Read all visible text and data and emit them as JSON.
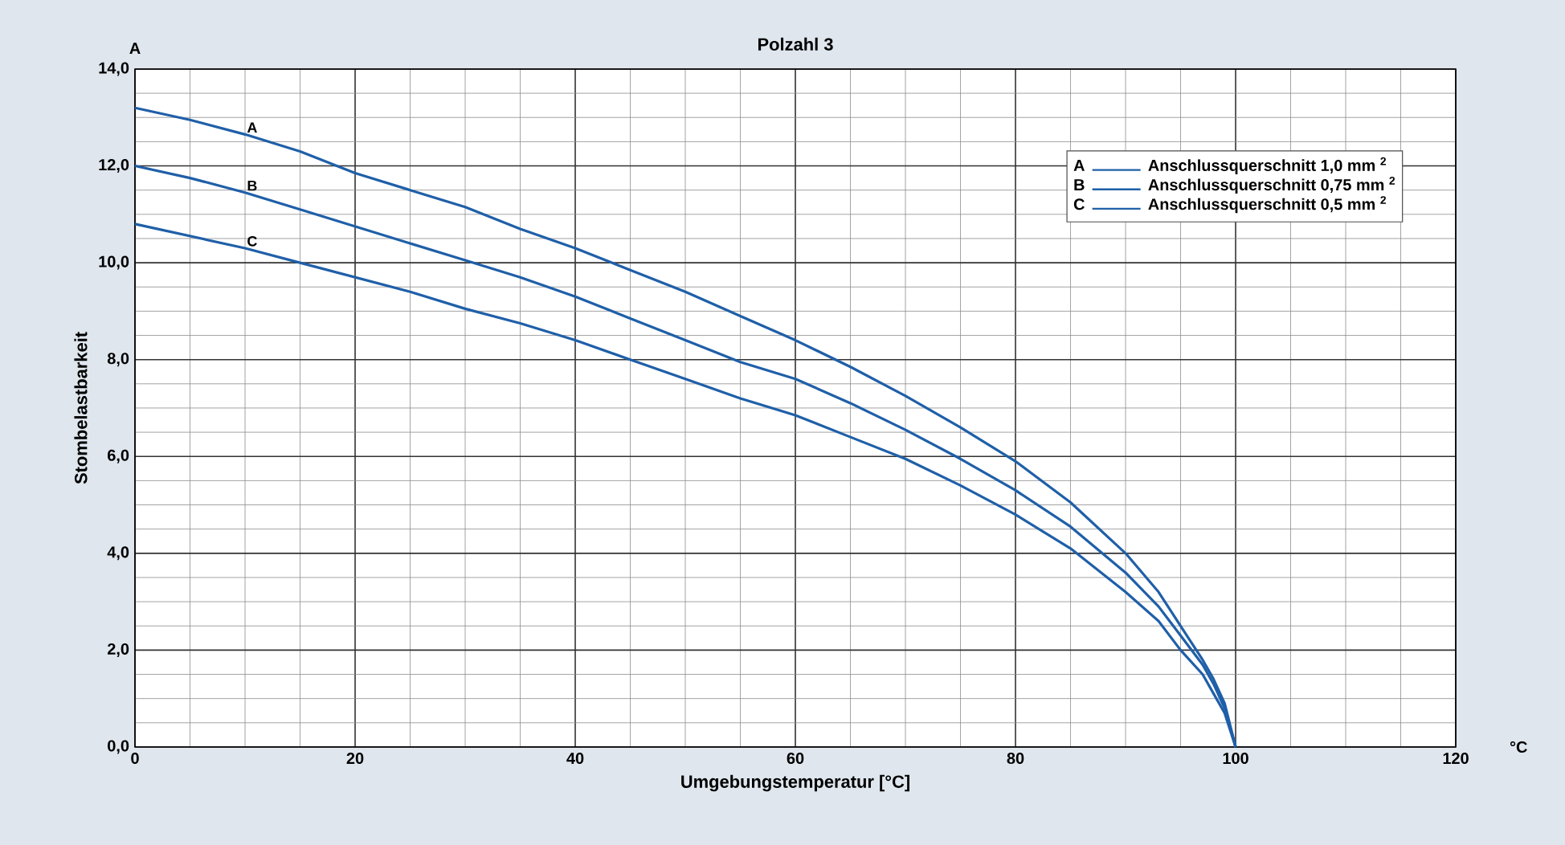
{
  "chart_data": {
    "type": "line",
    "title": "Polzahl 3",
    "xlabel": "Umgebungstemperatur  [°C]",
    "ylabel": "Stombelastbarkeit",
    "x": [
      0,
      5,
      10,
      15,
      20,
      25,
      30,
      35,
      40,
      45,
      50,
      55,
      60,
      65,
      70,
      75,
      80,
      85,
      90,
      93,
      95,
      97,
      98,
      99,
      100
    ],
    "series": [
      {
        "name": "Anschlussquerschnitt 1,0 mm $^{2}$",
        "color": "#1f5fa8",
        "values": [
          13.2,
          12.95,
          12.65,
          12.3,
          11.85,
          11.5,
          11.15,
          10.7,
          10.3,
          9.85,
          9.4,
          8.9,
          8.4,
          7.85,
          7.25,
          6.6,
          5.9,
          5.05,
          4.0,
          3.2,
          2.5,
          1.8,
          1.4,
          0.9,
          0
        ]
      },
      {
        "name": "Anschlussquerschnitt 0,75 mm $^{2}$",
        "color": "#1f5fa8",
        "values": [
          12.0,
          11.75,
          11.45,
          11.1,
          10.75,
          10.4,
          10.05,
          9.7,
          9.3,
          8.85,
          8.4,
          7.95,
          7.6,
          7.1,
          6.55,
          5.95,
          5.3,
          4.55,
          3.6,
          2.9,
          2.3,
          1.7,
          1.3,
          0.8,
          0
        ]
      },
      {
        "name": "Anschlussquerschnitt 0,5 mm $^{2}$",
        "color": "#1f5fa8",
        "values": [
          10.8,
          10.55,
          10.3,
          10.0,
          9.7,
          9.4,
          9.05,
          8.75,
          8.4,
          8.0,
          7.6,
          7.2,
          6.85,
          6.4,
          5.95,
          5.4,
          4.8,
          4.1,
          3.2,
          2.6,
          2.0,
          1.5,
          1.1,
          0.7,
          0
        ]
      }
    ],
    "annotations": [
      "A",
      "B",
      "C",
      "A",
      "B",
      "C",
      "A",
      "°C"
    ],
    "xlim": [
      0,
      120
    ],
    "xticks": [
      0,
      20,
      40,
      60,
      80,
      100,
      120
    ],
    "ylim": [
      0,
      14
    ],
    "yticks": [
      {
        "value": 0,
        "label": "0,0"
      },
      {
        "value": 2,
        "label": "2,0"
      },
      {
        "value": 4,
        "label": "4,0"
      },
      {
        "value": 6,
        "label": "6,0"
      },
      {
        "value": 8,
        "label": "8,0"
      },
      {
        "value": 10,
        "label": "10,0"
      },
      {
        "value": 12,
        "label": "12,0"
      },
      {
        "value": 14,
        "label": "14,0"
      }
    ],
    "grid": true,
    "legend": "top right",
    "marker": "none",
    "line_style": "solid"
  }
}
